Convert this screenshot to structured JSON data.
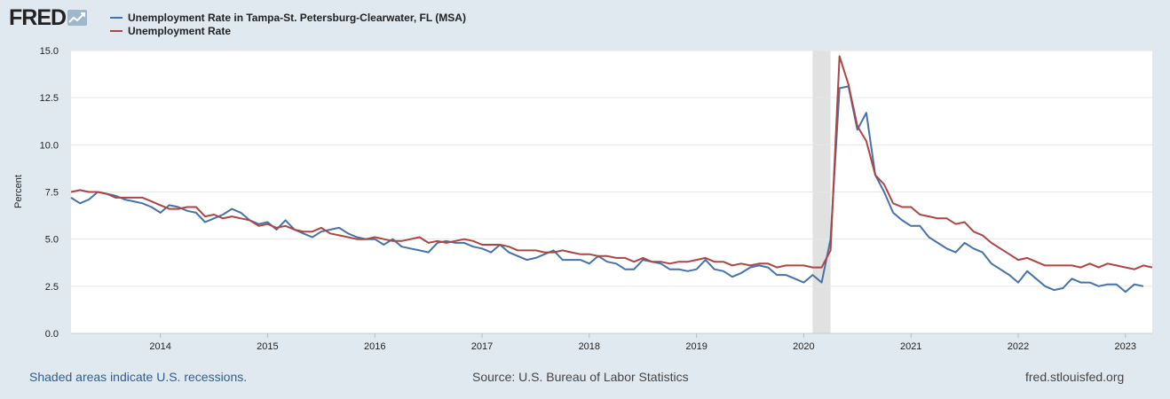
{
  "brand": {
    "logo_text": "FRED"
  },
  "colors": {
    "series1": "#4572a7",
    "series2": "#aa4643",
    "recession": "#e1e1e1",
    "grid": "#e6e6e6",
    "text": "#222222"
  },
  "footer": {
    "recession_note": "Shaded areas indicate U.S. recessions.",
    "source": "Source: U.S. Bureau of Labor Statistics",
    "site": "fred.stlouisfed.org"
  },
  "chart_data": {
    "type": "line",
    "title": "",
    "xlabel": "",
    "ylabel": "Percent",
    "xlim": [
      2013.167,
      2023.25
    ],
    "ylim": [
      0,
      15
    ],
    "yticks": [
      0,
      2.5,
      5,
      7.5,
      10,
      12.5,
      15
    ],
    "ytick_labels": [
      "0.0",
      "2.5",
      "5.0",
      "7.5",
      "10.0",
      "12.5",
      "15.0"
    ],
    "xticks": [
      2014,
      2015,
      2016,
      2017,
      2018,
      2019,
      2020,
      2021,
      2022,
      2023
    ],
    "xtick_labels": [
      "2014",
      "2015",
      "2016",
      "2017",
      "2018",
      "2019",
      "2020",
      "2021",
      "2022",
      "2023"
    ],
    "recessions": [
      [
        2020.083,
        2020.25
      ]
    ],
    "start": 2013.167,
    "step": 0.08333333,
    "series": [
      {
        "name": "Unemployment Rate in Tampa-St. Petersburg-Clearwater, FL (MSA)",
        "color": "#4572a7",
        "values": [
          7.2,
          6.9,
          7.1,
          7.5,
          7.4,
          7.3,
          7.1,
          7.0,
          6.9,
          6.7,
          6.4,
          6.8,
          6.7,
          6.5,
          6.4,
          5.9,
          6.1,
          6.3,
          6.6,
          6.4,
          6.0,
          5.8,
          5.9,
          5.5,
          6.0,
          5.5,
          5.3,
          5.1,
          5.4,
          5.5,
          5.6,
          5.3,
          5.1,
          5.0,
          5.0,
          4.7,
          5.0,
          4.6,
          4.5,
          4.4,
          4.3,
          4.8,
          4.9,
          4.8,
          4.8,
          4.6,
          4.5,
          4.3,
          4.7,
          4.3,
          4.1,
          3.9,
          4.0,
          4.2,
          4.4,
          3.9,
          3.9,
          3.9,
          3.7,
          4.1,
          3.8,
          3.7,
          3.4,
          3.4,
          3.9,
          3.8,
          3.7,
          3.4,
          3.4,
          3.3,
          3.4,
          3.9,
          3.4,
          3.3,
          3.0,
          3.2,
          3.5,
          3.6,
          3.5,
          3.1,
          3.1,
          2.9,
          2.7,
          3.1,
          2.7,
          5.0,
          13.0,
          13.1,
          10.8,
          11.7,
          8.4,
          7.5,
          6.4,
          6.0,
          5.7,
          5.7,
          5.1,
          4.8,
          4.5,
          4.3,
          4.8,
          4.5,
          4.3,
          3.7,
          3.4,
          3.1,
          2.7,
          3.3,
          2.9,
          2.5,
          2.3,
          2.4,
          2.9,
          2.7,
          2.7,
          2.5,
          2.6,
          2.6,
          2.2,
          2.6,
          2.5
        ]
      },
      {
        "name": "Unemployment Rate",
        "color": "#aa4643",
        "values": [
          7.5,
          7.6,
          7.5,
          7.5,
          7.4,
          7.2,
          7.2,
          7.2,
          7.2,
          7.0,
          6.8,
          6.6,
          6.6,
          6.7,
          6.7,
          6.2,
          6.3,
          6.1,
          6.2,
          6.1,
          6.0,
          5.7,
          5.8,
          5.6,
          5.7,
          5.5,
          5.4,
          5.4,
          5.6,
          5.3,
          5.2,
          5.1,
          5.0,
          5.0,
          5.1,
          5.0,
          4.9,
          4.9,
          5.0,
          5.1,
          4.8,
          4.9,
          4.8,
          4.9,
          5.0,
          4.9,
          4.7,
          4.7,
          4.7,
          4.6,
          4.4,
          4.4,
          4.4,
          4.3,
          4.3,
          4.4,
          4.3,
          4.2,
          4.2,
          4.1,
          4.1,
          4.0,
          4.0,
          3.8,
          4.0,
          3.8,
          3.8,
          3.7,
          3.8,
          3.8,
          3.9,
          4.0,
          3.8,
          3.8,
          3.6,
          3.7,
          3.6,
          3.7,
          3.7,
          3.5,
          3.6,
          3.6,
          3.6,
          3.5,
          3.5,
          4.4,
          14.7,
          13.2,
          11.0,
          10.2,
          8.4,
          7.9,
          6.9,
          6.7,
          6.7,
          6.3,
          6.2,
          6.1,
          6.1,
          5.8,
          5.9,
          5.4,
          5.2,
          4.8,
          4.5,
          4.2,
          3.9,
          4.0,
          3.8,
          3.6,
          3.6,
          3.6,
          3.6,
          3.5,
          3.7,
          3.5,
          3.7,
          3.6,
          3.5,
          3.4,
          3.6,
          3.5
        ]
      }
    ]
  }
}
